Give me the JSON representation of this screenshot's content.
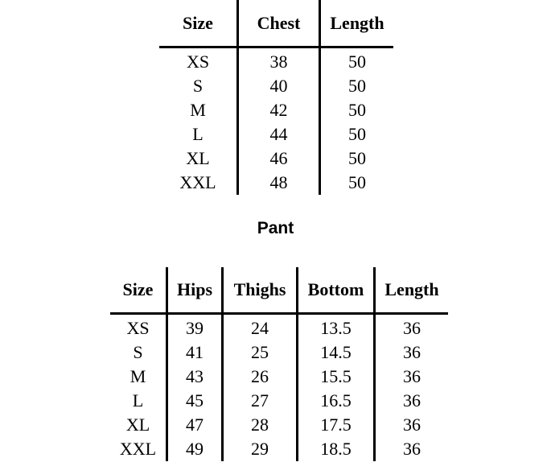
{
  "top_table": {
    "columns": [
      "Size",
      "Chest",
      "Length"
    ],
    "rows": [
      [
        "XS",
        "38",
        "50"
      ],
      [
        "S",
        "40",
        "50"
      ],
      [
        "M",
        "42",
        "50"
      ],
      [
        "L",
        "44",
        "50"
      ],
      [
        "XL",
        "46",
        "50"
      ],
      [
        "XXL",
        "48",
        "50"
      ]
    ]
  },
  "pant": {
    "title": "Pant",
    "columns": [
      "Size",
      "Hips",
      "Thighs",
      "Bottom",
      "Length"
    ],
    "rows": [
      [
        "XS",
        "39",
        "24",
        "13.5",
        "36"
      ],
      [
        "S",
        "41",
        "25",
        "14.5",
        "36"
      ],
      [
        "M",
        "43",
        "26",
        "15.5",
        "36"
      ],
      [
        "L",
        "45",
        "27",
        "16.5",
        "36"
      ],
      [
        "XL",
        "47",
        "28",
        "17.5",
        "36"
      ],
      [
        "XXL",
        "49",
        "29",
        "18.5",
        "36"
      ]
    ]
  }
}
